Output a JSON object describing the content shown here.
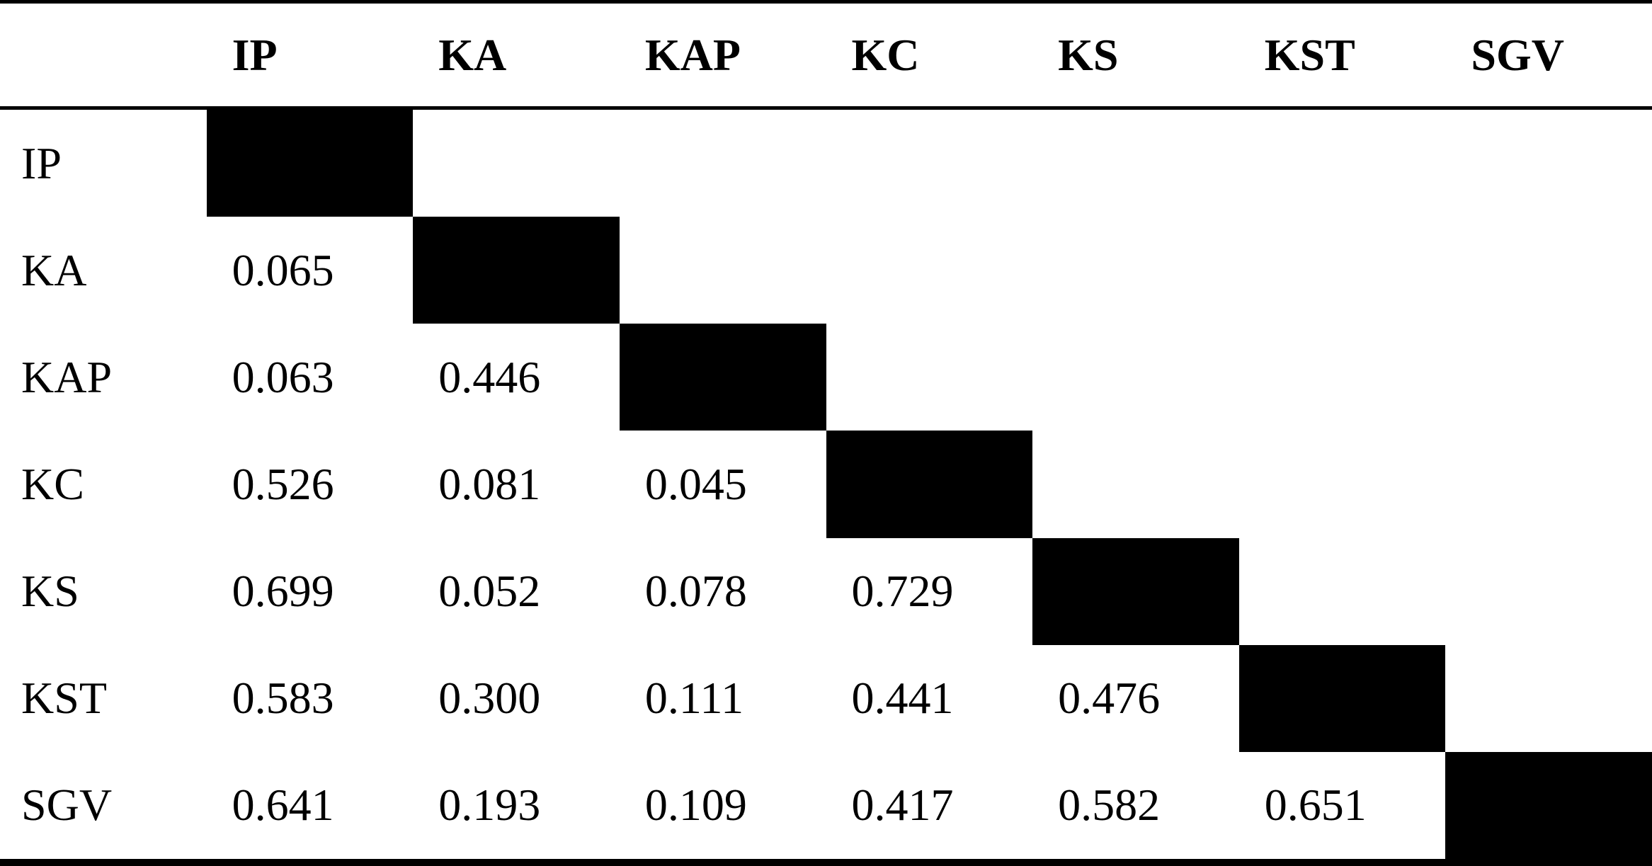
{
  "table": {
    "corner_label": "",
    "columns": [
      "IP",
      "KA",
      "KAP",
      "KC",
      "KS",
      "KST",
      "SGV"
    ],
    "rows": [
      {
        "label": "IP",
        "values": []
      },
      {
        "label": "KA",
        "values": [
          "0.065"
        ]
      },
      {
        "label": "KAP",
        "values": [
          "0.063",
          "0.446"
        ]
      },
      {
        "label": "KC",
        "values": [
          "0.526",
          "0.081",
          "0.045"
        ]
      },
      {
        "label": "KS",
        "values": [
          "0.699",
          "0.052",
          "0.078",
          "0.729"
        ]
      },
      {
        "label": "KST",
        "values": [
          "0.583",
          "0.300",
          "0.111",
          "0.441",
          "0.476"
        ]
      },
      {
        "label": "SGV",
        "values": [
          "0.641",
          "0.193",
          "0.109",
          "0.417",
          "0.582",
          "0.651"
        ]
      }
    ]
  },
  "colors": {
    "text": "#000000",
    "background": "#ffffff",
    "diagonal_fill": "#000000",
    "rule": "#000000"
  },
  "chart_data": {
    "type": "table",
    "title": "",
    "columns": [
      "",
      "IP",
      "KA",
      "KAP",
      "KC",
      "KS",
      "KST",
      "SGV"
    ],
    "rows": [
      [
        "IP",
        null,
        null,
        null,
        null,
        null,
        null,
        null
      ],
      [
        "KA",
        "0.065",
        null,
        null,
        null,
        null,
        null,
        null
      ],
      [
        "KAP",
        "0.063",
        "0.446",
        null,
        null,
        null,
        null,
        null
      ],
      [
        "KC",
        "0.526",
        "0.081",
        "0.045",
        null,
        null,
        null,
        null
      ],
      [
        "KS",
        "0.699",
        "0.052",
        "0.078",
        "0.729",
        null,
        null,
        null
      ],
      [
        "KST",
        "0.583",
        "0.300",
        "0.111",
        "0.441",
        "0.476",
        null,
        null
      ],
      [
        "SGV",
        "0.641",
        "0.193",
        "0.109",
        "0.417",
        "0.582",
        "0.651",
        null
      ]
    ],
    "notes": "Lower-triangular correlation matrix; diagonal cells are solid black fills."
  }
}
